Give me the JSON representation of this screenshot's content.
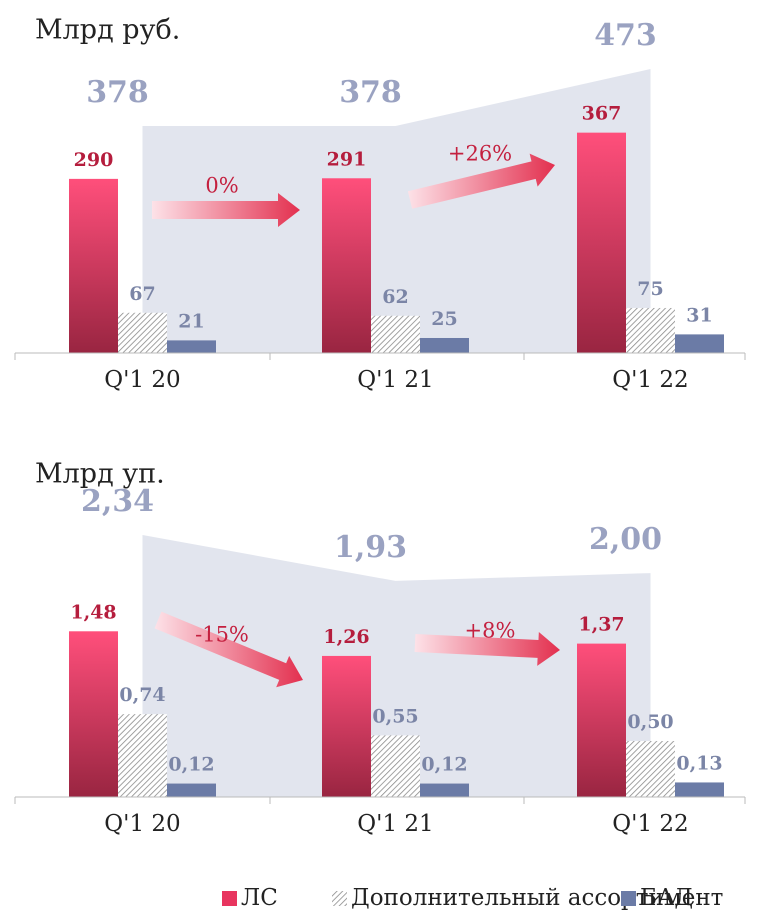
{
  "chart_data": [
    {
      "type": "bar",
      "title": "Млрд руб.",
      "categories": [
        "Q'1 20",
        "Q'1 21",
        "Q'1 22"
      ],
      "series": [
        {
          "name": "ЛС",
          "color": "#e8355f",
          "values": [
            290,
            291,
            367
          ]
        },
        {
          "name": "Дополнительный ассортимент",
          "color": "#8a8a8a",
          "values": [
            67,
            62,
            75
          ]
        },
        {
          "name": "БАД",
          "color": "#6b7ba6",
          "values": [
            21,
            25,
            31
          ]
        }
      ],
      "total_values": [
        378,
        378,
        473
      ],
      "total_color": "#dfe2ec",
      "annotations": [
        "0%",
        "+26%"
      ]
    },
    {
      "type": "bar",
      "title": "Млрд уп.",
      "categories": [
        "Q'1 20",
        "Q'1 21",
        "Q'1 22"
      ],
      "series": [
        {
          "color": "#e8355f",
          "values": [
            1.48,
            1.26,
            1.37
          ],
          "value_labels": [
            "1,48",
            "1,26",
            "1,37"
          ]
        },
        {
          "color": "#8a8a8a",
          "values": [
            0.74,
            0.55,
            0.5
          ],
          "value_labels": [
            "0,74",
            "0,55",
            "0,50"
          ]
        },
        {
          "color": "#6b7ba6",
          "values": [
            0.12,
            0.12,
            0.13
          ],
          "value_labels": [
            "0,12",
            "0,12",
            "0,13"
          ]
        }
      ],
      "total_values": [
        2.34,
        1.93,
        2.0
      ],
      "total_value_labels": [
        "2,34",
        "1,93",
        "2,00"
      ],
      "total_color": "#dfe2ec",
      "annotations": [
        "-15%",
        "+8%"
      ]
    }
  ]
}
